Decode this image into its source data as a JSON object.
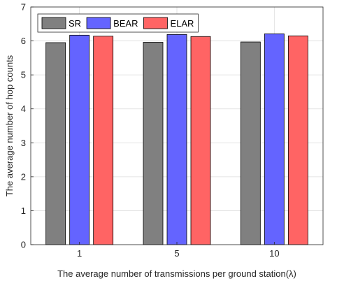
{
  "chart_data": {
    "type": "bar",
    "xlabel": "The average number of transmissions per ground station(λ)",
    "ylabel": "The average number of hop counts",
    "categories": [
      "1",
      "5",
      "10"
    ],
    "series": [
      {
        "name": "SR",
        "color": "#808080",
        "values": [
          5.95,
          5.96,
          5.97
        ]
      },
      {
        "name": "BEAR",
        "color": "#6464ff",
        "values": [
          6.17,
          6.19,
          6.21
        ]
      },
      {
        "name": "ELAR",
        "color": "#ff6464",
        "values": [
          6.14,
          6.13,
          6.15
        ]
      }
    ],
    "ylim": [
      0,
      7
    ],
    "yticks": [
      "0",
      "1",
      "2",
      "3",
      "4",
      "5",
      "6",
      "7"
    ],
    "grid": true,
    "legend": {
      "placement": "top-left",
      "orientation": "horizontal"
    }
  }
}
